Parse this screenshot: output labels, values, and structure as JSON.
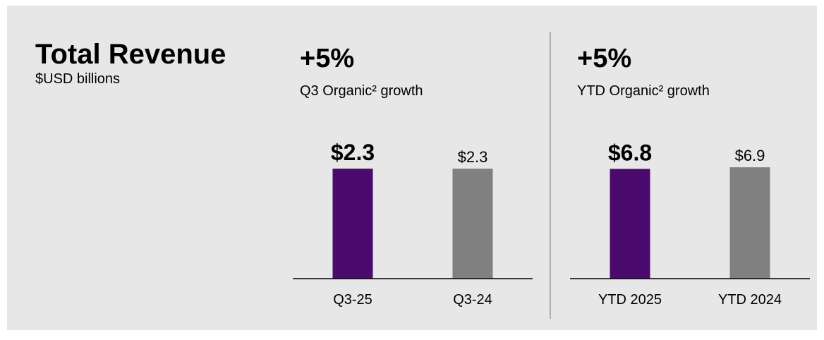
{
  "header": {
    "title": "Total Revenue",
    "subtitle": "$USD billions"
  },
  "chart_data": [
    {
      "type": "bar",
      "title": "+5%",
      "subtitle": "Q3 Organic² growth",
      "categories": [
        "Q3-25",
        "Q3-24"
      ],
      "values": [
        2.3,
        2.3
      ],
      "value_labels": [
        "$2.3",
        "$2.3"
      ],
      "colors": [
        "#4b0a6e",
        "#808080"
      ],
      "ylim": [
        0,
        2.7
      ]
    },
    {
      "type": "bar",
      "title": "+5%",
      "subtitle": "YTD Organic² growth",
      "categories": [
        "YTD 2025",
        "YTD 2024"
      ],
      "values": [
        6.8,
        6.9
      ],
      "value_labels": [
        "$6.8",
        "$6.9"
      ],
      "colors": [
        "#4b0a6e",
        "#808080"
      ],
      "ylim": [
        0,
        8
      ]
    }
  ]
}
